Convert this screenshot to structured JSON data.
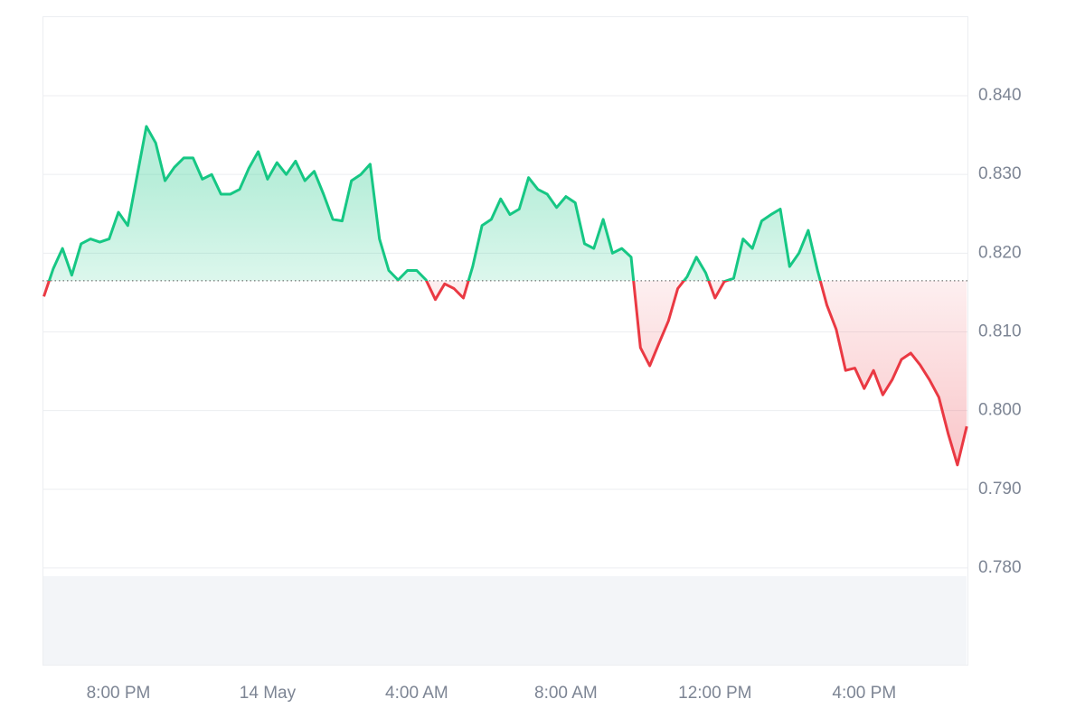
{
  "chart_data": {
    "type": "line",
    "categories": [
      null,
      null,
      null,
      null,
      null,
      null,
      null,
      null,
      "8:00 PM",
      null,
      null,
      null,
      null,
      null,
      null,
      null,
      null,
      null,
      null,
      null,
      null,
      null,
      null,
      null,
      "14 May",
      null,
      null,
      null,
      null,
      null,
      null,
      null,
      null,
      null,
      null,
      null,
      null,
      null,
      null,
      null,
      "4:00 AM",
      null,
      null,
      null,
      null,
      null,
      null,
      null,
      null,
      null,
      null,
      null,
      null,
      null,
      null,
      null,
      "8:00 AM",
      null,
      null,
      null,
      null,
      null,
      null,
      null,
      null,
      null,
      null,
      null,
      null,
      null,
      null,
      null,
      "12:00 PM",
      null,
      null,
      null,
      null,
      null,
      null,
      null,
      null,
      null,
      null,
      null,
      null,
      null,
      null,
      null,
      "4:00 PM",
      null,
      null,
      null,
      null,
      null,
      null,
      null,
      null,
      null,
      null,
      null
    ],
    "values": [
      0.8145,
      0.818,
      0.8206,
      0.8172,
      0.8212,
      0.8218,
      0.8214,
      0.8218,
      0.8252,
      0.8235,
      0.8298,
      0.8361,
      0.834,
      0.8292,
      0.8309,
      0.8321,
      0.8321,
      0.8294,
      0.83,
      0.8275,
      0.8275,
      0.8281,
      0.8308,
      0.8329,
      0.8294,
      0.8315,
      0.83,
      0.8317,
      0.8292,
      0.8304,
      0.8275,
      0.8243,
      0.8241,
      0.8292,
      0.83,
      0.8313,
      0.8218,
      0.8178,
      0.8166,
      0.8178,
      0.8178,
      0.8166,
      0.8141,
      0.8161,
      0.8155,
      0.8143,
      0.8183,
      0.8235,
      0.8243,
      0.8269,
      0.8249,
      0.8256,
      0.8296,
      0.8281,
      0.8275,
      0.8258,
      0.8272,
      0.8264,
      0.8212,
      0.8206,
      0.8243,
      0.82,
      0.8206,
      0.8195,
      0.808,
      0.8057,
      0.8086,
      0.8114,
      0.8155,
      0.817,
      0.8195,
      0.8175,
      0.8143,
      0.8164,
      0.8168,
      0.8218,
      0.8206,
      0.8241,
      0.8249,
      0.8256,
      0.8183,
      0.82,
      0.8229,
      0.8178,
      0.8134,
      0.8103,
      0.8051,
      0.8054,
      0.8028,
      0.8051,
      0.802,
      0.8039,
      0.8065,
      0.8073,
      0.8058,
      0.8039,
      0.8017,
      0.7971,
      0.7931,
      0.798
    ],
    "baseline": 0.8165,
    "up_color": "#16c784",
    "down_color": "#ea3943",
    "ylim": [
      0.7676,
      0.8501
    ],
    "yticks": [
      {
        "value": 0.78,
        "label": "0.780"
      },
      {
        "value": 0.79,
        "label": "0.790"
      },
      {
        "value": 0.8,
        "label": "0.800"
      },
      {
        "value": 0.81,
        "label": "0.810"
      },
      {
        "value": 0.82,
        "label": "0.820"
      },
      {
        "value": 0.83,
        "label": "0.830"
      },
      {
        "value": 0.84,
        "label": "0.840"
      }
    ],
    "grid": true
  }
}
